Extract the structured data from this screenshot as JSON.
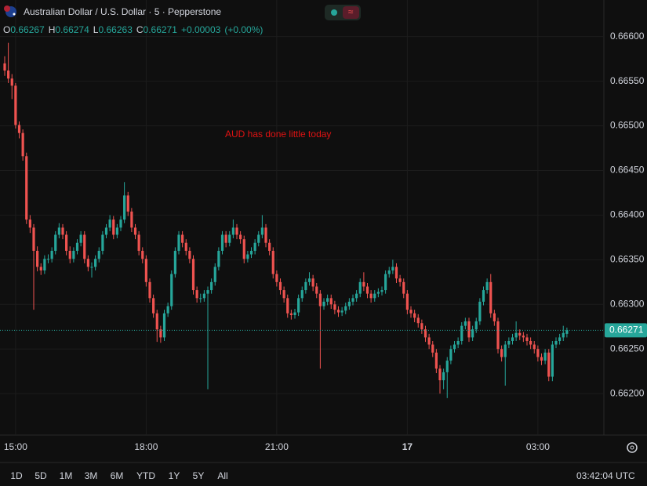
{
  "chart_data": {
    "type": "candlestick",
    "title": "Australian Dollar / U.S. Dollar · 5 · Pepperstone",
    "ohlc_labels": [
      "O",
      "H",
      "L",
      "C"
    ],
    "change": {
      "value": 3e-05,
      "label": "+0.00003"
    },
    "change_pct": {
      "value": 0,
      "label": "(+0.00%)"
    },
    "annotation": "AUD has done little today",
    "up_color": "#26a69a",
    "down_color": "#ef5350",
    "categories": [
      null,
      null,
      null,
      "15:00",
      null,
      null,
      null,
      null,
      null,
      null,
      null,
      null,
      null,
      null,
      null,
      null,
      null,
      null,
      null,
      null,
      null,
      null,
      null,
      null,
      null,
      null,
      null,
      null,
      null,
      null,
      null,
      null,
      null,
      null,
      null,
      null,
      null,
      null,
      null,
      "18:00",
      null,
      null,
      null,
      null,
      null,
      null,
      null,
      null,
      null,
      null,
      null,
      null,
      null,
      null,
      null,
      null,
      null,
      null,
      null,
      null,
      null,
      null,
      null,
      null,
      null,
      null,
      null,
      null,
      null,
      null,
      null,
      null,
      null,
      null,
      null,
      "21:00",
      null,
      null,
      null,
      null,
      null,
      null,
      null,
      null,
      null,
      null,
      null,
      null,
      null,
      null,
      null,
      null,
      null,
      null,
      null,
      null,
      null,
      null,
      null,
      null,
      null,
      null,
      null,
      null,
      null,
      null,
      null,
      null,
      null,
      null,
      null,
      "17",
      null,
      null,
      null,
      null,
      null,
      null,
      null,
      null,
      null,
      null,
      null,
      null,
      null,
      null,
      null,
      null,
      null,
      null,
      null,
      null,
      null,
      null,
      null,
      null,
      null,
      null,
      null,
      null,
      null,
      null,
      null,
      null,
      null,
      null,
      null,
      "03:00",
      null,
      null,
      null,
      null,
      null,
      null,
      null,
      null
    ],
    "open": [
      0.6657,
      0.66562,
      0.66553,
      0.66545,
      0.66501,
      0.66492,
      0.66466,
      0.66395,
      0.66386,
      0.6636,
      0.66342,
      0.66338,
      0.66351,
      0.66351,
      0.6636,
      0.66378,
      0.66386,
      0.66378,
      0.6636,
      0.66351,
      0.6636,
      0.66369,
      0.66378,
      0.66351,
      0.66342,
      0.66342,
      0.66351,
      0.6636,
      0.66378,
      0.66386,
      0.66395,
      0.66378,
      0.66386,
      0.66395,
      0.66422,
      0.66404,
      0.66386,
      0.66378,
      0.6636,
      0.66351,
      0.66325,
      0.66307,
      0.6629,
      0.66272,
      0.66263,
      0.6629,
      0.66298,
      0.66334,
      0.6636,
      0.66378,
      0.66369,
      0.6636,
      0.66351,
      0.66316,
      0.66307,
      0.66307,
      0.66312,
      0.66316,
      0.66325,
      0.66342,
      0.6636,
      0.66378,
      0.66369,
      0.66378,
      0.66386,
      0.66378,
      0.66373,
      0.66351,
      0.66356,
      0.6636,
      0.66369,
      0.66378,
      0.66386,
      0.66369,
      0.6636,
      0.66334,
      0.66325,
      0.66316,
      0.66307,
      0.6629,
      0.66288,
      0.66291,
      0.66307,
      0.66316,
      0.66325,
      0.66329,
      0.6632,
      0.66312,
      0.66298,
      0.66303,
      0.66307,
      0.663,
      0.66294,
      0.66291,
      0.66293,
      0.66298,
      0.66303,
      0.66307,
      0.66312,
      0.66325,
      0.6632,
      0.66312,
      0.66307,
      0.66312,
      0.66314,
      0.66316,
      0.66334,
      0.66338,
      0.66342,
      0.66329,
      0.66325,
      0.66312,
      0.66294,
      0.6629,
      0.66285,
      0.66279,
      0.66272,
      0.66263,
      0.66255,
      0.66246,
      0.66228,
      0.66215,
      0.66224,
      0.66237,
      0.6625,
      0.66255,
      0.66259,
      0.66276,
      0.66281,
      0.66263,
      0.66272,
      0.66281,
      0.66303,
      0.66316,
      0.66325,
      0.6629,
      0.66281,
      0.6625,
      0.66241,
      0.66255,
      0.66259,
      0.66263,
      0.66268,
      0.66265,
      0.66263,
      0.66259,
      0.66255,
      0.6625,
      0.66241,
      0.66237,
      0.66246,
      0.66219,
      0.66255,
      0.66259,
      0.66263,
      0.66267
    ],
    "high": [
      0.66578,
      0.66593,
      0.66558,
      0.66548,
      0.66505,
      0.66496,
      0.6647,
      0.664,
      0.6639,
      0.66365,
      0.66346,
      0.66355,
      0.66356,
      0.66364,
      0.66382,
      0.66391,
      0.6639,
      0.66382,
      0.66365,
      0.66364,
      0.66373,
      0.66382,
      0.66382,
      0.66355,
      0.66347,
      0.66355,
      0.66364,
      0.66382,
      0.6639,
      0.664,
      0.66399,
      0.6639,
      0.66399,
      0.66437,
      0.66426,
      0.66408,
      0.6639,
      0.66382,
      0.66364,
      0.66355,
      0.66329,
      0.66311,
      0.66294,
      0.66276,
      0.66294,
      0.66302,
      0.66338,
      0.66364,
      0.66382,
      0.66382,
      0.66373,
      0.66364,
      0.66355,
      0.6632,
      0.66312,
      0.66316,
      0.6632,
      0.66329,
      0.66346,
      0.66364,
      0.66382,
      0.66382,
      0.66382,
      0.66395,
      0.6639,
      0.66382,
      0.66377,
      0.6636,
      0.66364,
      0.66373,
      0.66382,
      0.664,
      0.6639,
      0.66373,
      0.66364,
      0.66338,
      0.66329,
      0.6632,
      0.66311,
      0.66294,
      0.66295,
      0.66311,
      0.6632,
      0.66329,
      0.66336,
      0.66333,
      0.66324,
      0.66316,
      0.66307,
      0.66311,
      0.66311,
      0.66304,
      0.66298,
      0.66297,
      0.66302,
      0.66307,
      0.66311,
      0.66316,
      0.66329,
      0.66336,
      0.66324,
      0.66316,
      0.66316,
      0.66318,
      0.6632,
      0.66338,
      0.66342,
      0.6635,
      0.66346,
      0.66333,
      0.66329,
      0.66316,
      0.66298,
      0.66294,
      0.66289,
      0.66283,
      0.66276,
      0.66267,
      0.66259,
      0.6625,
      0.66232,
      0.66228,
      0.66241,
      0.66254,
      0.66259,
      0.66263,
      0.6628,
      0.66285,
      0.66285,
      0.66276,
      0.66285,
      0.66307,
      0.6632,
      0.66329,
      0.66334,
      0.66294,
      0.66285,
      0.66254,
      0.66259,
      0.66263,
      0.66267,
      0.66281,
      0.66272,
      0.66269,
      0.66267,
      0.66263,
      0.66259,
      0.66254,
      0.66245,
      0.6625,
      0.6625,
      0.66259,
      0.66263,
      0.66267,
      0.66276,
      0.66274
    ],
    "low": [
      0.66556,
      0.66548,
      0.6653,
      0.66497,
      0.66486,
      0.66461,
      0.6639,
      0.6638,
      0.66294,
      0.66337,
      0.66333,
      0.66334,
      0.66346,
      0.66347,
      0.66356,
      0.66374,
      0.66373,
      0.66355,
      0.66346,
      0.66347,
      0.66356,
      0.66365,
      0.66346,
      0.66337,
      0.6633,
      0.66338,
      0.66347,
      0.66356,
      0.66374,
      0.66382,
      0.66373,
      0.66374,
      0.66382,
      0.66391,
      0.66399,
      0.66381,
      0.66373,
      0.66355,
      0.66346,
      0.6632,
      0.66302,
      0.66285,
      0.66258,
      0.66257,
      0.66259,
      0.66286,
      0.66294,
      0.6633,
      0.66356,
      0.66364,
      0.66355,
      0.66346,
      0.66311,
      0.66302,
      0.66302,
      0.66303,
      0.66205,
      0.66312,
      0.66321,
      0.66338,
      0.66356,
      0.66364,
      0.66365,
      0.66374,
      0.66373,
      0.66368,
      0.66346,
      0.66347,
      0.66352,
      0.66356,
      0.66365,
      0.66374,
      0.66364,
      0.66355,
      0.66329,
      0.6632,
      0.66311,
      0.66302,
      0.66285,
      0.66283,
      0.66284,
      0.66287,
      0.66303,
      0.66312,
      0.66321,
      0.66315,
      0.66307,
      0.66228,
      0.66294,
      0.66299,
      0.66295,
      0.66289,
      0.66286,
      0.66287,
      0.66289,
      0.66294,
      0.66299,
      0.66303,
      0.66308,
      0.66315,
      0.66307,
      0.66302,
      0.66303,
      0.66308,
      0.6631,
      0.66312,
      0.6633,
      0.66334,
      0.66324,
      0.6632,
      0.66307,
      0.66289,
      0.66285,
      0.6628,
      0.66274,
      0.66267,
      0.66258,
      0.6625,
      0.66241,
      0.66223,
      0.662,
      0.66205,
      0.66195,
      0.66233,
      0.66246,
      0.66251,
      0.66255,
      0.66272,
      0.66258,
      0.66259,
      0.66268,
      0.66277,
      0.66299,
      0.66312,
      0.66285,
      0.66276,
      0.66245,
      0.66236,
      0.66209,
      0.66251,
      0.66255,
      0.66259,
      0.6626,
      0.66258,
      0.66254,
      0.6625,
      0.66245,
      0.66236,
      0.66232,
      0.66233,
      0.66214,
      0.66214,
      0.66251,
      0.66255,
      0.66259,
      0.66263
    ],
    "close": [
      0.66562,
      0.66553,
      0.66545,
      0.66501,
      0.66492,
      0.66466,
      0.66395,
      0.66386,
      0.6636,
      0.66342,
      0.66338,
      0.66351,
      0.66351,
      0.6636,
      0.66378,
      0.66386,
      0.66378,
      0.6636,
      0.66351,
      0.6636,
      0.66369,
      0.66378,
      0.66351,
      0.66342,
      0.66342,
      0.66351,
      0.6636,
      0.66378,
      0.66386,
      0.66395,
      0.66378,
      0.66386,
      0.66395,
      0.66422,
      0.66404,
      0.66386,
      0.66378,
      0.6636,
      0.66351,
      0.66325,
      0.66307,
      0.6629,
      0.66272,
      0.66263,
      0.6629,
      0.66298,
      0.66334,
      0.6636,
      0.66378,
      0.66369,
      0.6636,
      0.66351,
      0.66316,
      0.66307,
      0.66307,
      0.66312,
      0.66316,
      0.66325,
      0.66342,
      0.6636,
      0.66378,
      0.66369,
      0.66378,
      0.66386,
      0.66378,
      0.66373,
      0.66351,
      0.66356,
      0.6636,
      0.66369,
      0.66378,
      0.66386,
      0.66369,
      0.6636,
      0.66334,
      0.66325,
      0.66316,
      0.66307,
      0.6629,
      0.66288,
      0.66291,
      0.66307,
      0.66316,
      0.66325,
      0.66329,
      0.6632,
      0.66312,
      0.66298,
      0.66303,
      0.66307,
      0.663,
      0.66294,
      0.66291,
      0.66293,
      0.66298,
      0.66303,
      0.66307,
      0.66312,
      0.66325,
      0.6632,
      0.66312,
      0.66307,
      0.66312,
      0.66314,
      0.66316,
      0.66334,
      0.66338,
      0.66342,
      0.66329,
      0.66325,
      0.66312,
      0.66294,
      0.6629,
      0.66285,
      0.66279,
      0.66272,
      0.66263,
      0.66255,
      0.66246,
      0.66228,
      0.66215,
      0.66224,
      0.66237,
      0.6625,
      0.66255,
      0.66259,
      0.66276,
      0.66281,
      0.66263,
      0.66272,
      0.66281,
      0.66303,
      0.66316,
      0.66325,
      0.6629,
      0.66281,
      0.6625,
      0.66241,
      0.66255,
      0.66259,
      0.66263,
      0.66268,
      0.66265,
      0.66263,
      0.66259,
      0.66255,
      0.6625,
      0.66241,
      0.66237,
      0.66246,
      0.66219,
      0.66255,
      0.66259,
      0.66263,
      0.66268,
      0.66271
    ],
    "ylim": [
      0.66158,
      0.66641
    ],
    "yticks": [
      {
        "value": 0.662,
        "label": "0.66200"
      },
      {
        "value": 0.6625,
        "label": "0.66250"
      },
      {
        "value": 0.663,
        "label": "0.66300"
      },
      {
        "value": 0.6635,
        "label": "0.66350"
      },
      {
        "value": 0.664,
        "label": "0.66400"
      },
      {
        "value": 0.6645,
        "label": "0.66450"
      },
      {
        "value": 0.665,
        "label": "0.66500"
      },
      {
        "value": 0.6655,
        "label": "0.66550"
      },
      {
        "value": 0.666,
        "label": "0.66600"
      }
    ],
    "grid": true
  },
  "toolbar": {
    "ranges": [
      "1D",
      "5D",
      "1M",
      "3M",
      "6M",
      "YTD",
      "1Y",
      "5Y",
      "All"
    ],
    "clock": "03:42:04 UTC"
  }
}
